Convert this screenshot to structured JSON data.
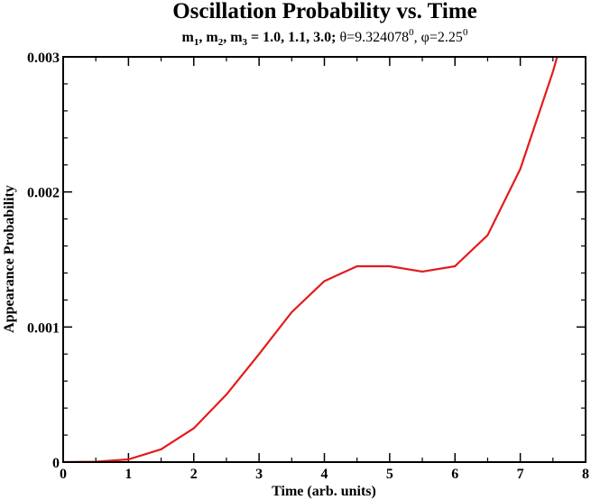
{
  "chart_data": {
    "type": "line",
    "title": "Oscillation Probability vs. Time",
    "subtitle": {
      "m1": "m",
      "m1_sub": "1",
      "sep1": ", ",
      "m2": "m",
      "m2_sub": "2",
      "sep2": ", ",
      "m3": "m",
      "m3_sub": "3",
      "masses": " = 1.0, 1.1, 3.0;",
      "theta": " θ=9.324078",
      "theta_sup": "0",
      "sep3": ", ",
      "phi": "φ=2.25",
      "phi_sup": "0"
    },
    "xlabel": "Time (arb. units)",
    "ylabel": "Appearance Probability",
    "xlim": [
      0,
      8
    ],
    "ylim": [
      0,
      0.003
    ],
    "xticks": [
      0,
      1,
      2,
      3,
      4,
      5,
      6,
      7,
      8
    ],
    "xtick_labels": [
      "0",
      "1",
      "2",
      "3",
      "4",
      "5",
      "6",
      "7",
      "8"
    ],
    "yticks": [
      0,
      0.001,
      0.002,
      0.003
    ],
    "ytick_labels": [
      "0",
      "0.001",
      "0.002",
      "0.003"
    ],
    "grid": false,
    "line_color": "#e41a1c",
    "series": [
      {
        "x": [
          0,
          0.5,
          1,
          1.5,
          2,
          2.5,
          3,
          3.5,
          4,
          4.5,
          5,
          5.5,
          6,
          6.5,
          7,
          7.5,
          7.65
        ],
        "values": [
          0,
          3e-06,
          2e-05,
          9.5e-05,
          0.00025,
          0.0005,
          0.0008,
          0.00111,
          0.00134,
          0.00145,
          0.00145,
          0.00141,
          0.00145,
          0.00168,
          0.00217,
          0.00289,
          0.00315
        ]
      }
    ]
  }
}
